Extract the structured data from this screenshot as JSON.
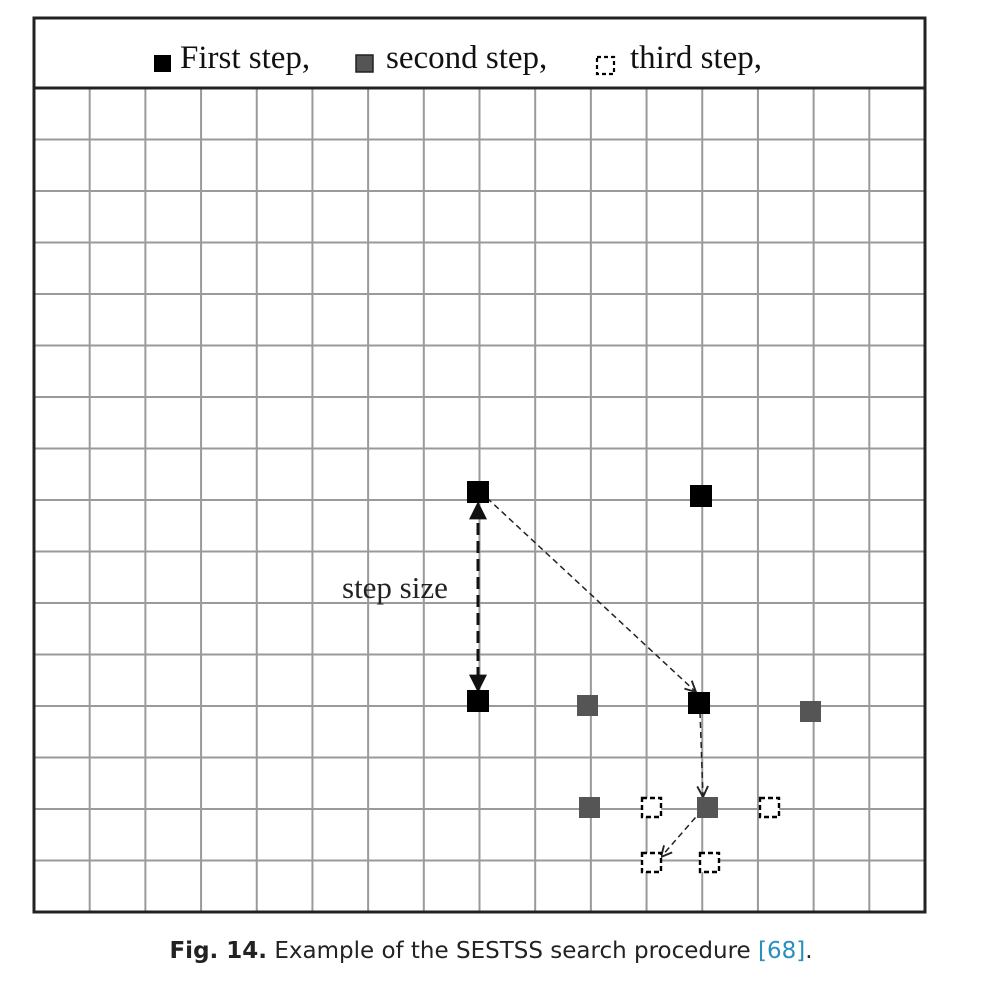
{
  "legend": {
    "first_step": "First step,",
    "second_step": "second step,",
    "third_step": "third step,"
  },
  "annotation": {
    "step_size": "step size"
  },
  "caption": {
    "fig_number": "Fig. 14.",
    "text": "Example of the SESTSS search procedure",
    "reference": "[68]",
    "trailing": "."
  },
  "colors": {
    "first_step": "#000000",
    "second_step": "#555555",
    "third_step_outline": "#000000",
    "grid": "#9a9a9a",
    "caption_reference": "#2a8fbd"
  },
  "grid": {
    "columns": 16,
    "rows": 16
  }
}
